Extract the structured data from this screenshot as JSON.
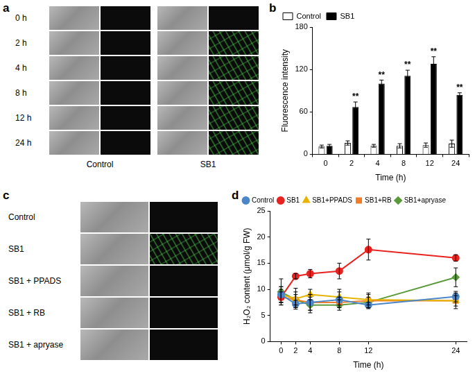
{
  "panel_labels": [
    "a",
    "b",
    "c",
    "d"
  ],
  "panel_a": {
    "rows": [
      "0 h",
      "2 h",
      "4 h",
      "8 h",
      "12 h",
      "24 h"
    ],
    "columns": [
      "Control",
      "SB1"
    ]
  },
  "panel_c": {
    "rows": [
      "Control",
      "SB1",
      "SB1 + PPADS",
      "SB1 + RB",
      "SB1 + apryase"
    ]
  },
  "chart_data": [
    {
      "type": "bar",
      "x_label": "Time (h)",
      "y_label": "Fluorescence intensity",
      "categories": [
        "0",
        "2",
        "4",
        "8",
        "12",
        "24"
      ],
      "series": [
        {
          "name": "Control",
          "color": "#ffffff",
          "values": [
            11,
            16,
            12,
            12,
            13,
            15
          ],
          "errors": [
            2,
            3,
            2,
            3,
            3,
            5
          ]
        },
        {
          "name": "SB1",
          "color": "#000000",
          "values": [
            12,
            67,
            100,
            111,
            128,
            84
          ],
          "errors": [
            2,
            7,
            5,
            8,
            10,
            3
          ],
          "significance": [
            null,
            "**",
            "**",
            "**",
            "**",
            "**"
          ]
        }
      ],
      "ylim": [
        0,
        180
      ],
      "yticks": [
        0,
        60,
        120,
        180
      ],
      "grid": false,
      "legend": "top-left"
    },
    {
      "type": "line",
      "x_label": "Time (h)",
      "y_label": "H₂O₂ content (μmol/g FW)",
      "x": [
        0,
        2,
        4,
        8,
        12,
        24
      ],
      "series": [
        {
          "name": "Control",
          "color": "#4a86c8",
          "marker": "circle",
          "values": [
            9,
            7.2,
            7.5,
            8,
            7,
            8.6
          ],
          "errors": [
            1.5,
            0.7,
            1.5,
            1.5,
            0.5,
            1
          ]
        },
        {
          "name": "SB1",
          "color": "#e8231f",
          "marker": "circle",
          "values": [
            8.5,
            12.5,
            13,
            13.5,
            17.6,
            16
          ],
          "errors": [
            1.5,
            0.5,
            0.8,
            1.5,
            2,
            0.6
          ]
        },
        {
          "name": "SB1+PPADS",
          "color": "#e6b400",
          "marker": "triangle",
          "values": [
            9,
            8.2,
            9,
            8.5,
            8,
            7.8
          ],
          "errors": [
            1.5,
            2,
            1,
            1.5,
            1,
            1
          ]
        },
        {
          "name": "SB1+RB",
          "color": "#f07d28",
          "marker": "square",
          "values": [
            8.5,
            8,
            7.5,
            7.5,
            7.8,
            7.8
          ],
          "errors": [
            1,
            1,
            1.5,
            1,
            1.5,
            1.5
          ]
        },
        {
          "name": "SB1+apryase",
          "color": "#5a9a3a",
          "marker": "diamond",
          "values": [
            9.5,
            8,
            7,
            7,
            7.5,
            12.3
          ],
          "errors": [
            2.5,
            1.5,
            1.5,
            1,
            1,
            1.8
          ]
        }
      ],
      "xlim": [
        -1.5,
        25.5
      ],
      "xticks": [
        0,
        2,
        4,
        8,
        12,
        24
      ],
      "ylim": [
        0,
        25
      ],
      "yticks": [
        0,
        5,
        10,
        15,
        20,
        25
      ],
      "grid": false,
      "legend": "top-left"
    }
  ]
}
